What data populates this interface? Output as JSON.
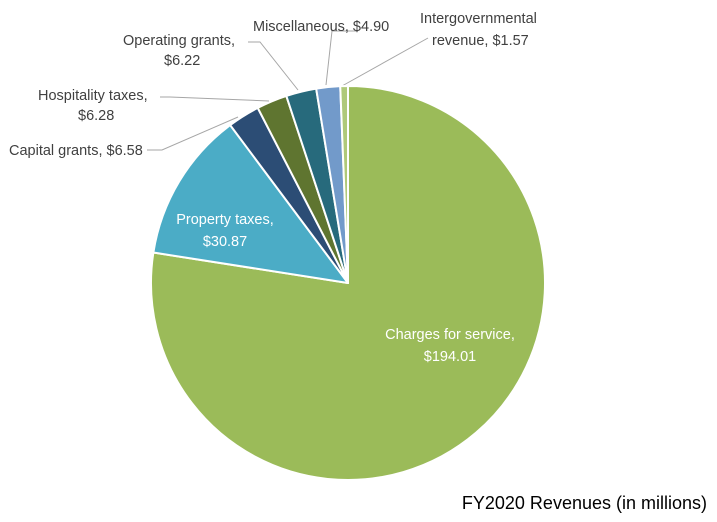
{
  "chart_data": {
    "type": "pie",
    "title": "FY2020 Revenues (in millions)",
    "start_angle_deg": 0,
    "direction": "clockwise",
    "slices": [
      {
        "label": "Charges for service,",
        "value_label": "$194.01",
        "value": 194.01,
        "color": "#9bbb59",
        "label_color": "#ffffff"
      },
      {
        "label": "Property taxes,",
        "value_label": "$30.87",
        "value": 30.87,
        "color": "#4bacc6",
        "label_color": "#ffffff"
      },
      {
        "label": "Capital grants,",
        "value_label": "$6.58",
        "value": 6.58,
        "color": "#2c4d75",
        "label_color": "#404040"
      },
      {
        "label": "Hospitality taxes,",
        "value_label": "$6.28",
        "value": 6.28,
        "color": "#5f7530",
        "label_color": "#404040"
      },
      {
        "label": "Operating grants,",
        "value_label": "$6.22",
        "value": 6.22,
        "color": "#276a7c",
        "label_color": "#404040"
      },
      {
        "label": "Miscellaneous,",
        "value_label": "$4.90",
        "value": 4.9,
        "color": "#729aca",
        "label_color": "#404040"
      },
      {
        "label": "Intergovernmental",
        "value_label": "revenue, $1.57",
        "value": 1.57,
        "color": "#afc97a",
        "label_color": "#404040"
      }
    ]
  }
}
